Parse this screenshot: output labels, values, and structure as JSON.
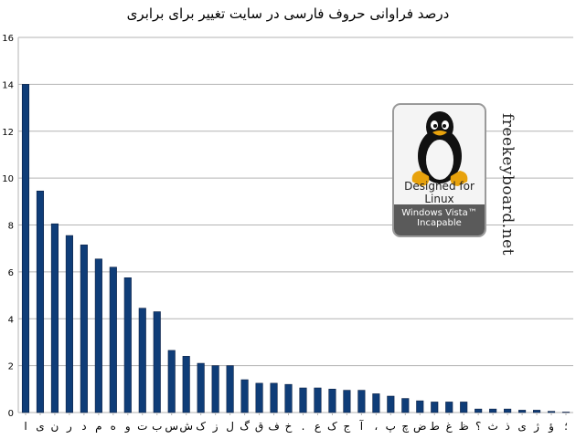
{
  "chart_data": {
    "type": "bar",
    "title": "درصد فراوانی حروف فارسی در سایت تغییر برای برابری",
    "categories": [
      "ا",
      "ی",
      "ن",
      "ر",
      "د",
      "م",
      "ه",
      "و",
      "ت",
      "ب",
      "س",
      "ش",
      "ک",
      "ز",
      "ل",
      "گ",
      "ق",
      "ف",
      "خ",
      ".",
      "ع",
      "ک",
      "ج",
      "آ",
      "،",
      "پ",
      "چ",
      "ض",
      "ط",
      "غ",
      "ظ",
      "؟",
      "ث",
      "ذ",
      "ی",
      "ژ",
      "ؤ",
      "؛"
    ],
    "values": [
      14.0,
      9.45,
      8.05,
      7.55,
      7.15,
      6.55,
      6.2,
      5.75,
      4.45,
      4.3,
      2.65,
      2.4,
      2.1,
      2.0,
      2.0,
      1.4,
      1.25,
      1.25,
      1.2,
      1.05,
      1.05,
      1.0,
      0.95,
      0.95,
      0.8,
      0.7,
      0.6,
      0.5,
      0.45,
      0.45,
      0.45,
      0.15,
      0.15,
      0.15,
      0.1,
      0.1,
      0.05,
      0.02
    ],
    "ylim": [
      0,
      16
    ],
    "yticks": [
      "0",
      "2",
      "4",
      "6",
      "8",
      "10",
      "12",
      "14",
      "16"
    ],
    "grid": true,
    "bar_color": "#0f3d78",
    "bar_edge_color": "#0a1f44",
    "grid_color": "#b3b3b3"
  },
  "badge": {
    "line1": "Designed for",
    "line2": "Linux",
    "line3": "Windows Vista™",
    "line4": "Incapable"
  },
  "site_name": "freekeyboard.net"
}
